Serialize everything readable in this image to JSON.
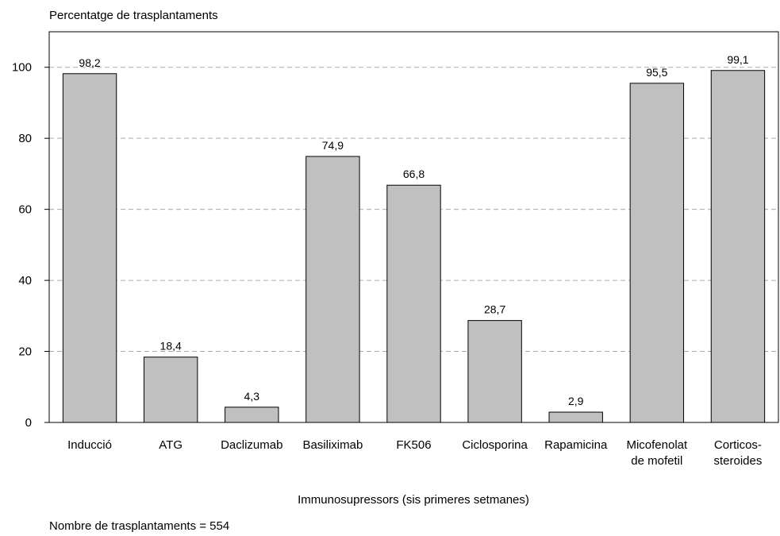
{
  "chart_data": {
    "type": "bar",
    "y_label": "Percentatge de trasplantaments",
    "x_label": "Immunosupressors (sis primeres setmanes)",
    "note": "Nombre de trasplantaments = 554",
    "categories": [
      "Inducció",
      "ATG",
      "Daclizumab",
      "Basiliximab",
      "FK506",
      "Ciclosporina",
      "Rapamicina",
      "Micofenolat\nde mofetil",
      "Corticos-\nsteroides"
    ],
    "values": [
      98.2,
      18.4,
      4.3,
      74.9,
      66.8,
      28.7,
      2.9,
      95.5,
      99.1
    ],
    "value_labels": [
      "98,2",
      "18,4",
      "4,3",
      "74,9",
      "66,8",
      "28,7",
      "2,9",
      "95,5",
      "99,1"
    ],
    "color": "#c0c0c0",
    "ylim": [
      0,
      110
    ],
    "yticks": [
      0,
      20,
      40,
      60,
      80,
      100
    ],
    "grid": true
  }
}
